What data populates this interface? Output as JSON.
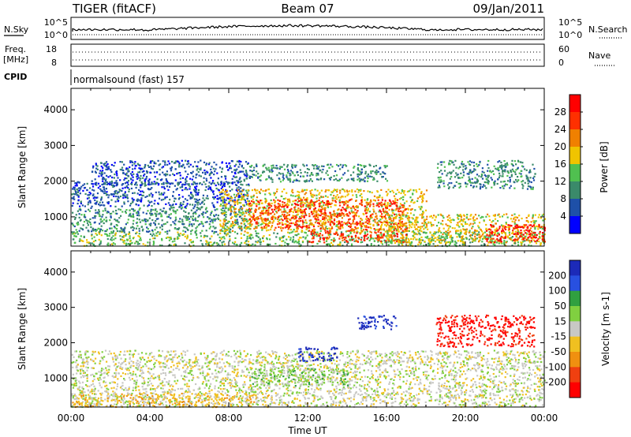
{
  "header": {
    "station": "TIGER (fitACF)",
    "beam": "Beam 07",
    "date": "09/Jan/2011"
  },
  "status_panels": {
    "nsky_label": "N.Sky",
    "nsearch_label": "N.Search",
    "log_ticks": [
      "10^5",
      "10^0"
    ],
    "freq_label": "Freq.",
    "freq_unit": "[MHz]",
    "freq_ticks": [
      "18",
      "8"
    ],
    "nave_label": "Nave",
    "nave_ticks": [
      "60",
      "0"
    ],
    "cpid_label": "CPID",
    "cpid_text": "normalsound (fast) 157"
  },
  "chart_data": [
    {
      "type": "heatmap",
      "title": "",
      "ylabel": "Slant Range [km]",
      "xlabel": "",
      "x_ticks": [
        "00:00",
        "04:00",
        "08:00",
        "12:00",
        "16:00",
        "20:00",
        "00:00"
      ],
      "x_range_hours": [
        0,
        24
      ],
      "y_ticks": [
        1000,
        2000,
        3000,
        4000
      ],
      "ylim": [
        180,
        4600
      ],
      "colorbar_label": "Power [dB]",
      "colorbar_ticks": [
        "4",
        "8",
        "12",
        "16",
        "20",
        "24",
        "28"
      ],
      "colors": [
        "#0000ff",
        "#1e50a8",
        "#3a8a6a",
        "#50c050",
        "#f0c400",
        "#f08000",
        "#ff3000",
        "#ff0000"
      ],
      "regions": [
        {
          "t": [
            0,
            24
          ],
          "r": [
            200,
            600
          ],
          "level": 3
        },
        {
          "t": [
            0,
            9
          ],
          "r": [
            600,
            1300
          ],
          "level": 2
        },
        {
          "t": [
            0,
            9
          ],
          "r": [
            1300,
            2000
          ],
          "level": 1
        },
        {
          "t": [
            1,
            9
          ],
          "r": [
            1900,
            2600
          ],
          "level": 1
        },
        {
          "t": [
            7.5,
            18
          ],
          "r": [
            600,
            1800
          ],
          "level": 4
        },
        {
          "t": [
            9,
            17
          ],
          "r": [
            700,
            1500
          ],
          "level": 6
        },
        {
          "t": [
            12,
            17
          ],
          "r": [
            300,
            700
          ],
          "level": 6
        },
        {
          "t": [
            16,
            24
          ],
          "r": [
            300,
            1100
          ],
          "level": 4
        },
        {
          "t": [
            21,
            24
          ],
          "r": [
            300,
            800
          ],
          "level": 7
        },
        {
          "t": [
            9,
            16
          ],
          "r": [
            2000,
            2500
          ],
          "level": 2
        },
        {
          "t": [
            18.5,
            23.5
          ],
          "r": [
            1800,
            2600
          ],
          "level": 2
        }
      ]
    },
    {
      "type": "heatmap",
      "title": "",
      "ylabel": "Slant Range [km]",
      "xlabel": "Time UT",
      "x_ticks": [
        "00:00",
        "04:00",
        "08:00",
        "12:00",
        "16:00",
        "20:00",
        "00:00"
      ],
      "x_range_hours": [
        0,
        24
      ],
      "y_ticks": [
        1000,
        2000,
        3000,
        4000
      ],
      "ylim": [
        180,
        4600
      ],
      "colorbar_label": "Velocity [m s-1]",
      "colorbar_ticks": [
        "200",
        "100",
        "50",
        "15",
        "-15",
        "-50",
        "-100",
        "-200"
      ],
      "colors": [
        "#1c2ab8",
        "#2850e0",
        "#30a040",
        "#80d040",
        "#c8c8c4",
        "#f0c020",
        "#f09010",
        "#f04010",
        "#ff0000"
      ],
      "regions": [
        {
          "t": [
            0,
            24
          ],
          "r": [
            200,
            1800
          ],
          "level": 4
        },
        {
          "t": [
            0,
            10
          ],
          "r": [
            200,
            600
          ],
          "level": 5
        },
        {
          "t": [
            9,
            14
          ],
          "r": [
            800,
            1300
          ],
          "level": 3
        },
        {
          "t": [
            11.5,
            13.5
          ],
          "r": [
            1500,
            1900
          ],
          "level": 0
        },
        {
          "t": [
            14.5,
            16.5
          ],
          "r": [
            2400,
            2800
          ],
          "level": 0
        },
        {
          "t": [
            18.5,
            23.5
          ],
          "r": [
            1900,
            2800
          ],
          "level": 8
        }
      ]
    }
  ]
}
